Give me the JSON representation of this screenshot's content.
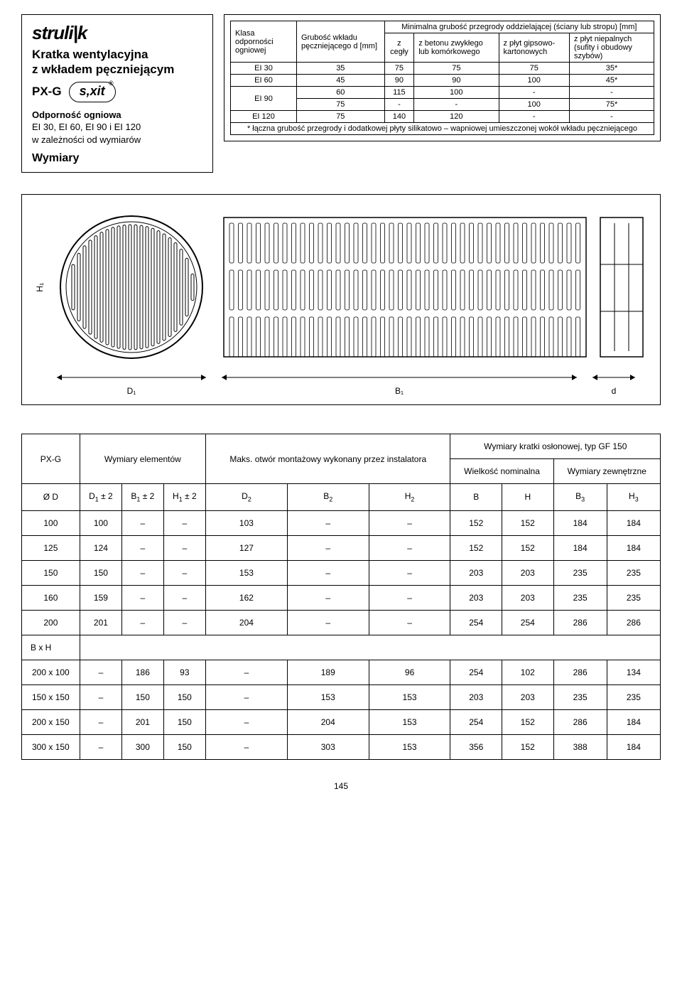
{
  "logo": "struli|k",
  "title_line1": "Kratka wentylacyjna",
  "title_line2": "z wkładem pęczniejącym",
  "pxg": "PX-G",
  "sxit": "s,xit",
  "reg": "®",
  "odp_title": "Odporność ogniowa",
  "odp_sub1": "EI 30, EI 60, EI 90 i EI 120",
  "odp_sub2": "w zależności od wymiarów",
  "wymiary": "Wymiary",
  "t1": {
    "h_klasa": "Klasa odporności ogniowej",
    "h_grubosc": "Grubość wkładu pęczniejącego d [mm]",
    "h_min": "Minimalna grubość przegrody oddzielającej (ściany lub stropu) [mm]",
    "h_cegly": "z cegły",
    "h_betonu": "z betonu zwykłego lub komórkowego",
    "h_gips": "z płyt gipsowo-kartonowych",
    "h_niepal": "z płyt niepalnych (sufity i obudowy szybów)",
    "rows": [
      [
        "EI 30",
        "35",
        "75",
        "75",
        "75",
        "35*"
      ],
      [
        "EI 60",
        "45",
        "90",
        "90",
        "100",
        "45*"
      ],
      [
        "EI 90",
        "60",
        "115",
        "100",
        "-",
        "-"
      ],
      [
        "",
        "75",
        "-",
        "-",
        "100",
        "75*"
      ],
      [
        "EI 120",
        "75",
        "140",
        "120",
        "-",
        "-"
      ]
    ],
    "footnote": "* łączna grubość przegrody i dodatkowej płyty silikatowo – wapniowej umieszczonej wokół wkładu pęczniejącego"
  },
  "diagram": {
    "h1": "H₁",
    "d1": "D₁",
    "b1": "B₁",
    "d": "d"
  },
  "main": {
    "h_pxg": "PX-G",
    "h_wel": "Wymiary elementów",
    "h_maks": "Maks. otwór montażowy wykonany przez instalatora",
    "h_wko": "Wymiary kratki osłonowej, typ GF 150",
    "h_wnom": "Wielkość nominalna",
    "h_wzew": "Wymiary zewnętrzne",
    "cols": [
      "Ø D",
      "D₁ ± 2",
      "B₁ ± 2",
      "H₁ ± 2",
      "D₂",
      "B₂",
      "H₂",
      "B",
      "H",
      "B₃",
      "H₃"
    ],
    "rows1": [
      [
        "100",
        "100",
        "–",
        "–",
        "103",
        "–",
        "–",
        "152",
        "152",
        "184",
        "184"
      ],
      [
        "125",
        "124",
        "–",
        "–",
        "127",
        "–",
        "–",
        "152",
        "152",
        "184",
        "184"
      ],
      [
        "150",
        "150",
        "–",
        "–",
        "153",
        "–",
        "–",
        "203",
        "203",
        "235",
        "235"
      ],
      [
        "160",
        "159",
        "–",
        "–",
        "162",
        "–",
        "–",
        "203",
        "203",
        "235",
        "235"
      ],
      [
        "200",
        "201",
        "–",
        "–",
        "204",
        "–",
        "–",
        "254",
        "254",
        "286",
        "286"
      ]
    ],
    "bxh": "B x H",
    "rows2": [
      [
        "200 x 100",
        "–",
        "186",
        "93",
        "–",
        "189",
        "96",
        "254",
        "102",
        "286",
        "134"
      ],
      [
        "150 x 150",
        "–",
        "150",
        "150",
        "–",
        "153",
        "153",
        "203",
        "203",
        "235",
        "235"
      ],
      [
        "200 x 150",
        "–",
        "201",
        "150",
        "–",
        "204",
        "153",
        "254",
        "152",
        "286",
        "184"
      ],
      [
        "300 x 150",
        "–",
        "300",
        "150",
        "–",
        "303",
        "153",
        "356",
        "152",
        "388",
        "184"
      ]
    ]
  },
  "page": "145"
}
